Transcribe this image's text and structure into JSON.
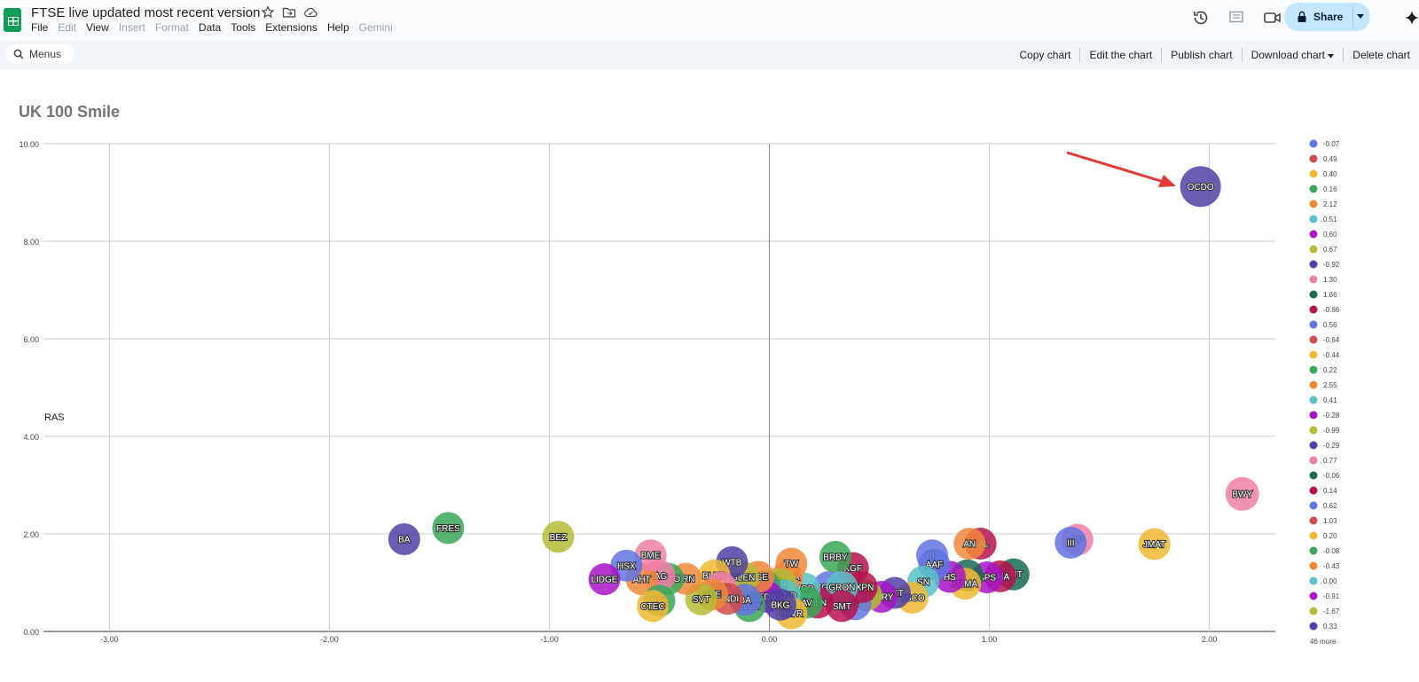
{
  "app": {
    "doc_title": "FTSE live updated most recent version",
    "menu": [
      "File",
      "Edit",
      "View",
      "Insert",
      "Format",
      "Data",
      "Tools",
      "Extensions",
      "Help",
      "Gemini"
    ],
    "menu_disabled": [
      1,
      3,
      4,
      9
    ],
    "share_label": "Share",
    "search_label": "Menus"
  },
  "chart_actions": [
    "Copy chart",
    "Edit the chart",
    "Publish chart",
    "Download chart",
    "Delete chart"
  ],
  "colors": {
    "palette": [
      "#6174e0",
      "#d24a4a",
      "#f1b934",
      "#3aa757",
      "#f0883a",
      "#5bc1c6",
      "#a614c5",
      "#b4bc36",
      "#4f3fa6",
      "#f07fa8",
      "#186b54",
      "#b6124e"
    ],
    "arrow": "#e53935",
    "grid": "#cccccc"
  },
  "chart_data": {
    "type": "scatter",
    "subtype": "bubble",
    "title": "UK 100 Smile",
    "ylabel": "RAS",
    "xlabel": "",
    "xlim": [
      -3.3,
      2.3
    ],
    "ylim": [
      0,
      10
    ],
    "x_ticks": [
      "-3.00",
      "-2.00",
      "-1.00",
      "0.00",
      "1.00",
      "2.00"
    ],
    "y_ticks": [
      "0.00",
      "2.00",
      "4.00",
      "6.00",
      "8.00",
      "10.00"
    ],
    "grid": true,
    "legend_position": "right",
    "legend": [
      "-0.07",
      "0.49",
      "0.40",
      "0.16",
      "2.12",
      "0.51",
      "0.60",
      "0.67",
      "-0.92",
      "1.30",
      "1.66",
      "-0.66",
      "0.56",
      "-0.64",
      "-0.44",
      "0.22",
      "2.55",
      "0.41",
      "-0.28",
      "-0.99",
      "-0.29",
      "0.77",
      "-0.06",
      "0.14",
      "0.62",
      "1.03",
      "0.20",
      "-0.08",
      "-0.43",
      "0.00",
      "-0.91",
      "-1.67",
      "0.33"
    ],
    "legend_more": "46 more",
    "annotation": "arrow pointing to OCDO",
    "points": [
      {
        "label": "OCDO",
        "x": 1.96,
        "y": 9.12,
        "c": 8
      },
      {
        "label": "BWY",
        "x": 2.15,
        "y": 2.82,
        "c": 9
      },
      {
        "label": "JMAT",
        "x": 1.75,
        "y": 1.79,
        "c": 2
      },
      {
        "label": "PP",
        "x": 1.4,
        "y": 1.88,
        "c": 9
      },
      {
        "label": "III",
        "x": 1.37,
        "y": 1.82,
        "c": 0
      },
      {
        "label": "AAL",
        "x": 0.96,
        "y": 1.8,
        "c": 11
      },
      {
        "label": "AN",
        "x": 0.91,
        "y": 1.8,
        "c": 4
      },
      {
        "label": "ENT",
        "x": 1.11,
        "y": 1.17,
        "c": 10
      },
      {
        "label": "SHA",
        "x": 1.05,
        "y": 1.13,
        "c": 11
      },
      {
        "label": "SPS",
        "x": 0.99,
        "y": 1.11,
        "c": 6
      },
      {
        "label": "CPG",
        "x": 0.9,
        "y": 1.15,
        "c": 10
      },
      {
        "label": "HLMA",
        "x": 0.89,
        "y": 0.98,
        "c": 2
      },
      {
        "label": "HS",
        "x": 0.82,
        "y": 1.12,
        "c": 6
      },
      {
        "label": "BP",
        "x": 0.74,
        "y": 1.56,
        "c": 0
      },
      {
        "label": "AAF",
        "x": 0.75,
        "y": 1.37,
        "c": 0
      },
      {
        "label": "SN",
        "x": 0.7,
        "y": 1.02,
        "c": 5
      },
      {
        "label": "TSCO",
        "x": 0.65,
        "y": 0.69,
        "c": 2
      },
      {
        "label": "RKT",
        "x": 0.57,
        "y": 0.79,
        "c": 8
      },
      {
        "label": "SBRY",
        "x": 0.51,
        "y": 0.71,
        "c": 6
      },
      {
        "label": "TAI",
        "x": 0.44,
        "y": 0.74,
        "c": 7
      },
      {
        "label": "G",
        "x": 0.39,
        "y": 0.56,
        "c": 0
      },
      {
        "label": "KGF",
        "x": 0.38,
        "y": 1.3,
        "c": 11
      },
      {
        "label": "BRBY",
        "x": 0.3,
        "y": 1.53,
        "c": 3
      },
      {
        "label": "EXPN",
        "x": 0.42,
        "y": 0.91,
        "c": 11
      },
      {
        "label": "SGRO",
        "x": 0.27,
        "y": 0.91,
        "c": 0
      },
      {
        "label": "GRON",
        "x": 0.33,
        "y": 0.91,
        "c": 5
      },
      {
        "label": "SMT",
        "x": 0.33,
        "y": 0.52,
        "c": 11
      },
      {
        "label": "HLN",
        "x": 0.22,
        "y": 0.59,
        "c": 11
      },
      {
        "label": "VOD",
        "x": 0.16,
        "y": 0.88,
        "c": 5
      },
      {
        "label": "AV",
        "x": 0.17,
        "y": 0.59,
        "c": 3
      },
      {
        "label": "CRDA",
        "x": 0.08,
        "y": 1.12,
        "c": 4
      },
      {
        "label": "TW",
        "x": 0.1,
        "y": 1.39,
        "c": 4
      },
      {
        "label": "RR",
        "x": 0.05,
        "y": 0.97,
        "c": 7
      },
      {
        "label": "LAND",
        "x": 0.07,
        "y": 0.74,
        "c": 5
      },
      {
        "label": "ULVR",
        "x": 0.1,
        "y": 0.37,
        "c": 2
      },
      {
        "label": "BNZL",
        "x": -0.02,
        "y": 0.93,
        "c": 3
      },
      {
        "label": "LGEN",
        "x": -0.04,
        "y": 0.91,
        "c": 0
      },
      {
        "label": "EDV",
        "x": -0.01,
        "y": 0.71,
        "c": 6
      },
      {
        "label": "BKG",
        "x": 0.05,
        "y": 0.55,
        "c": 8
      },
      {
        "label": "SSE",
        "x": -0.14,
        "y": 0.92,
        "c": 5
      },
      {
        "label": "LLOY",
        "x": -0.09,
        "y": 0.52,
        "c": 3
      },
      {
        "label": "DGE",
        "x": -0.05,
        "y": 1.12,
        "c": 4
      },
      {
        "label": "GLEN",
        "x": -0.12,
        "y": 1.11,
        "c": 7
      },
      {
        "label": "WTB",
        "x": -0.17,
        "y": 1.42,
        "c": 8
      },
      {
        "label": "BLND",
        "x": -0.25,
        "y": 1.15,
        "c": 2
      },
      {
        "label": "UTG",
        "x": -0.22,
        "y": 0.9,
        "c": 9
      },
      {
        "label": "BA_",
        "x": -0.11,
        "y": 0.65,
        "c": 0
      },
      {
        "label": "MNDI",
        "x": -0.19,
        "y": 0.67,
        "c": 1
      },
      {
        "label": "SSE2",
        "x": -0.26,
        "y": 0.76,
        "c": 4
      },
      {
        "label": "SVT",
        "x": -0.31,
        "y": 0.66,
        "c": 7
      },
      {
        "label": "TRN",
        "x": -0.38,
        "y": 1.08,
        "c": 4
      },
      {
        "label": "AUTO",
        "x": -0.46,
        "y": 1.08,
        "c": 3
      },
      {
        "label": "IAG",
        "x": -0.5,
        "y": 1.14,
        "c": 9
      },
      {
        "label": "AHT",
        "x": -0.58,
        "y": 1.07,
        "c": 4
      },
      {
        "label": "BME",
        "x": -0.54,
        "y": 1.56,
        "c": 9
      },
      {
        "label": "HSX",
        "x": -0.65,
        "y": 1.35,
        "c": 0
      },
      {
        "label": "LIDGE",
        "x": -0.75,
        "y": 1.07,
        "c": 6
      },
      {
        "label": "REL",
        "x": -0.5,
        "y": 0.63,
        "c": 3
      },
      {
        "label": "CTEC",
        "x": -0.53,
        "y": 0.52,
        "c": 2
      },
      {
        "label": "BEZ",
        "x": -0.96,
        "y": 1.94,
        "c": 7
      },
      {
        "label": "FRES",
        "x": -1.46,
        "y": 2.12,
        "c": 3
      },
      {
        "label": "BA",
        "x": -1.66,
        "y": 1.89,
        "c": 8
      }
    ]
  }
}
